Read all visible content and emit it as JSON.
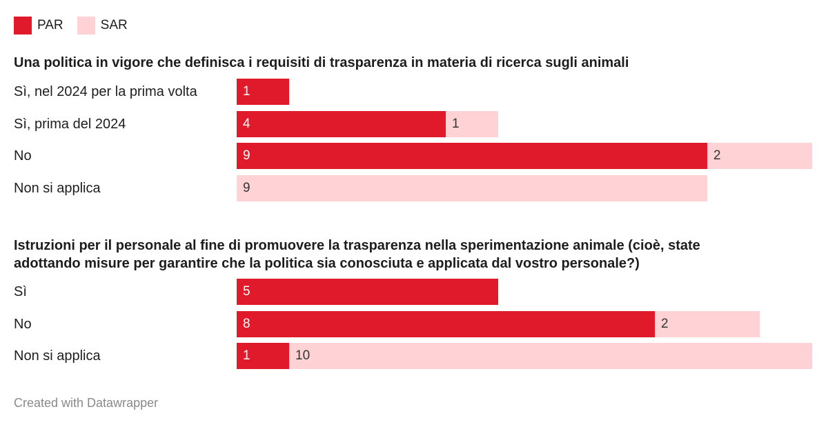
{
  "colors": {
    "par": "#e01a2b",
    "sar": "#ffd3d6",
    "par_label": "#ffffff",
    "sar_label": "#333333"
  },
  "legend": [
    {
      "key": "par",
      "label": "PAR"
    },
    {
      "key": "sar",
      "label": "SAR"
    }
  ],
  "chart_data": [
    {
      "type": "bar",
      "orientation": "horizontal",
      "stacked": true,
      "title": "Una politica in vigore che definisca i requisiti di trasparenza in materia di ricerca sugli animali",
      "categories": [
        "Sì, nel 2024 per la prima volta",
        "Sì, prima del 2024",
        "No",
        "Non si applica"
      ],
      "series": [
        {
          "name": "PAR",
          "values": [
            1,
            4,
            9,
            0
          ]
        },
        {
          "name": "SAR",
          "values": [
            0,
            1,
            2,
            9
          ]
        }
      ],
      "xlim": [
        0,
        11
      ]
    },
    {
      "type": "bar",
      "orientation": "horizontal",
      "stacked": true,
      "title": "Istruzioni per il personale al fine di promuovere la trasparenza nella sperimentazione animale (cioè, state adottando misure per garantire che la politica sia conosciuta e applicata dal vostro personale?)",
      "title_lines": [
        "Istruzioni per il personale al fine di promuovere la trasparenza nella sperimentazione animale (cioè, state",
        "adottando misure per garantire che la politica sia conosciuta e applicata dal vostro personale?)"
      ],
      "categories": [
        "Sì",
        "No",
        "Non si applica"
      ],
      "series": [
        {
          "name": "PAR",
          "values": [
            5,
            8,
            1
          ]
        },
        {
          "name": "SAR",
          "values": [
            0,
            2,
            10
          ]
        }
      ],
      "xlim": [
        0,
        11
      ]
    }
  ],
  "footer": "Created with Datawrapper"
}
